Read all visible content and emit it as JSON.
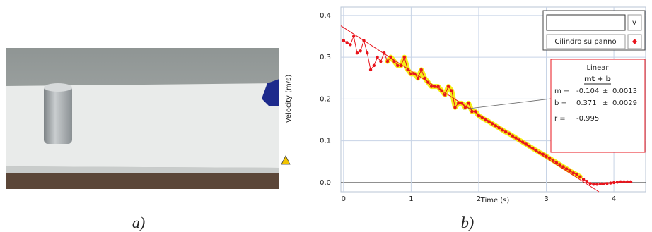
{
  "captions": [
    "a)",
    "b)"
  ],
  "chart_data": {
    "type": "line",
    "x_label": "Time (s)",
    "y_label": "Velocity (m/s)",
    "xlim": [
      -0.04,
      4.47
    ],
    "ylim": [
      -0.022,
      0.42
    ],
    "xticks": [
      0,
      1,
      2,
      3,
      4
    ],
    "yticks": [
      {
        "value": 0,
        "label": "0.0"
      },
      0.1,
      0.2,
      0.3,
      0.4
    ],
    "grid": true,
    "legend_button": "v",
    "series": [
      {
        "name": "Cilindro su panno",
        "color": "#e8141c",
        "x": [
          0,
          0.05,
          0.1,
          0.15,
          0.2,
          0.25,
          0.3,
          0.35,
          0.4,
          0.45,
          0.5,
          0.55,
          0.6,
          0.65,
          0.7,
          0.75,
          0.8,
          0.85,
          0.9,
          0.95,
          1.0,
          1.05,
          1.1,
          1.15,
          1.2,
          1.25,
          1.3,
          1.35,
          1.4,
          1.45,
          1.5,
          1.55,
          1.6,
          1.65,
          1.7,
          1.75,
          1.8,
          1.85,
          1.9,
          1.95,
          2.0,
          2.05,
          2.1,
          2.15,
          2.2,
          2.25,
          2.3,
          2.35,
          2.4,
          2.45,
          2.5,
          2.55,
          2.6,
          2.65,
          2.7,
          2.75,
          2.8,
          2.85,
          2.9,
          2.95,
          3.0,
          3.05,
          3.1,
          3.15,
          3.2,
          3.25,
          3.3,
          3.35,
          3.4,
          3.45,
          3.5,
          3.55,
          3.6,
          3.65,
          3.7,
          3.75,
          3.8,
          3.85,
          3.9,
          3.95,
          4.0,
          4.05,
          4.1,
          4.15,
          4.2,
          4.25
        ],
        "values": [
          0.34,
          0.335,
          0.33,
          0.35,
          0.31,
          0.315,
          0.34,
          0.31,
          0.27,
          0.28,
          0.3,
          0.29,
          0.31,
          0.29,
          0.3,
          0.29,
          0.28,
          0.28,
          0.3,
          0.27,
          0.26,
          0.26,
          0.25,
          0.27,
          0.25,
          0.24,
          0.23,
          0.23,
          0.23,
          0.22,
          0.21,
          0.23,
          0.22,
          0.18,
          0.19,
          0.19,
          0.18,
          0.19,
          0.17,
          0.17,
          0.16,
          0.155,
          0.15,
          0.146,
          0.141,
          0.136,
          0.131,
          0.126,
          0.121,
          0.117,
          0.112,
          0.107,
          0.102,
          0.097,
          0.092,
          0.087,
          0.082,
          0.077,
          0.072,
          0.068,
          0.063,
          0.058,
          0.053,
          0.048,
          0.043,
          0.038,
          0.033,
          0.028,
          0.023,
          0.019,
          0.014,
          0.008,
          0.003,
          -0.002,
          -0.004,
          -0.004,
          -0.003,
          -0.003,
          -0.002,
          -0.001,
          0,
          0.001,
          0.002,
          0.002,
          0.002,
          0.002
        ]
      }
    ],
    "highlight": {
      "color": "#f5ee1a",
      "x_range": [
        0.65,
        3.5
      ]
    },
    "fit": {
      "name": "Linear",
      "formula": "mt + b",
      "color": "#e8141c",
      "rows": [
        {
          "label": "m =",
          "value": -0.104,
          "pm": "±",
          "error": 0.0013
        },
        {
          "label": "b =",
          "value": 0.371,
          "pm": "±",
          "error": 0.0029
        }
      ],
      "r": {
        "label": "r =",
        "value": -0.995
      }
    }
  }
}
